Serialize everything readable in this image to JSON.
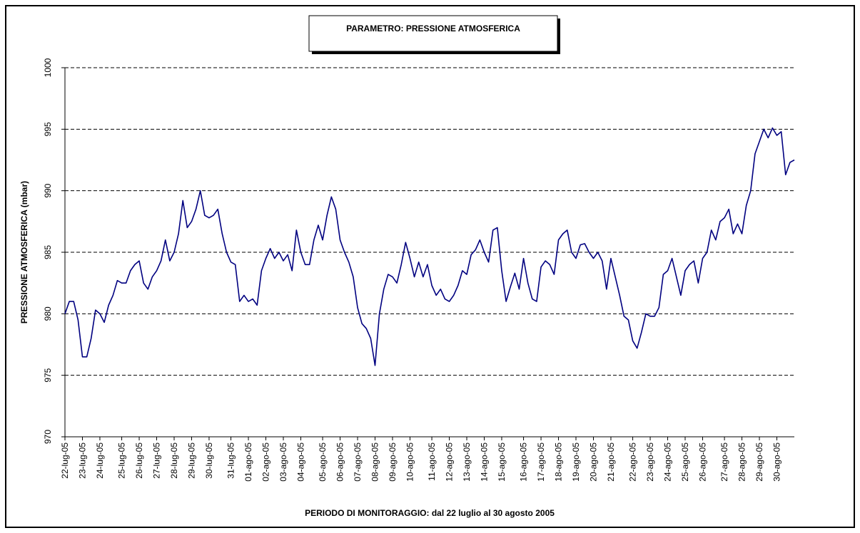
{
  "chart_data": {
    "type": "line",
    "title": "PARAMETRO: PRESSIONE ATMOSFERICA",
    "y_label": "PRESSIONE ATMOSFERICA (mbar)",
    "x_label": "PERIODO DI MONITORAGGIO: dal 22 luglio al 30 agosto 2005",
    "ylim": [
      970,
      1000
    ],
    "yticks": [
      970,
      975,
      980,
      985,
      990,
      995,
      1000
    ],
    "grid": true,
    "color": "#000080",
    "categories": [
      "22-lug-05",
      null,
      null,
      null,
      "23-lug-05",
      null,
      null,
      null,
      "24-lug-05",
      null,
      null,
      null,
      null,
      "25-lug-05",
      null,
      null,
      null,
      "26-lug-05",
      null,
      null,
      null,
      "27-lug-05",
      null,
      null,
      null,
      "28-lug-05",
      null,
      null,
      null,
      "29-lug-05",
      null,
      null,
      null,
      "30-lug-05",
      null,
      null,
      null,
      null,
      "31-lug-05",
      null,
      null,
      null,
      "01-ago-05",
      null,
      null,
      null,
      "02-ago-05",
      null,
      null,
      null,
      "03-ago-05",
      null,
      null,
      null,
      "04-ago-05",
      null,
      null,
      null,
      null,
      "05-ago-05",
      null,
      null,
      null,
      "06-ago-05",
      null,
      null,
      null,
      "07-ago-05",
      null,
      null,
      null,
      "08-ago-05",
      null,
      null,
      null,
      "09-ago-05",
      null,
      null,
      null,
      "10-ago-05",
      null,
      null,
      null,
      null,
      "11-ago-05",
      null,
      null,
      null,
      "12-ago-05",
      null,
      null,
      null,
      "13-ago-05",
      null,
      null,
      null,
      "14-ago-05",
      null,
      null,
      null,
      "15-ago-05",
      null,
      null,
      null,
      null,
      "16-ago-05",
      null,
      null,
      null,
      "17-ago-05",
      null,
      null,
      null,
      "18-ago-05",
      null,
      null,
      null,
      "19-ago-05",
      null,
      null,
      null,
      "20-ago-05",
      null,
      null,
      null,
      "21-ago-05",
      null,
      null,
      null,
      null,
      "22-ago-05",
      null,
      null,
      null,
      "23-ago-05",
      null,
      null,
      null,
      "24-ago-05",
      null,
      null,
      null,
      "25-ago-05",
      null,
      null,
      null,
      "26-ago-05",
      null,
      null,
      null,
      null,
      "27-ago-05",
      null,
      null,
      null,
      "28-ago-05",
      null,
      null,
      null,
      "29-ago-05",
      null,
      null,
      null,
      "30-ago-05",
      null,
      null,
      null,
      null
    ],
    "values": [
      980,
      981,
      981,
      979.5,
      976.5,
      976.5,
      978,
      980.3,
      980,
      979.3,
      980.7,
      981.5,
      982.7,
      982.5,
      982.5,
      983.5,
      984,
      984.3,
      982.5,
      982,
      983,
      983.5,
      984.3,
      986,
      984.3,
      985,
      986.5,
      989.2,
      987,
      987.5,
      988.5,
      990,
      988,
      987.8,
      988,
      988.5,
      986.5,
      985,
      984.2,
      984,
      981,
      981.5,
      981,
      981.2,
      980.7,
      983.5,
      984.5,
      985.3,
      984.5,
      985,
      984.3,
      984.8,
      983.5,
      986.8,
      985,
      984,
      984,
      986,
      987.2,
      986,
      988,
      989.5,
      988.5,
      986,
      985,
      984.2,
      983,
      980.5,
      979.2,
      978.8,
      978,
      975.8,
      980,
      982,
      983.2,
      983,
      982.5,
      984,
      985.8,
      984.5,
      983,
      984.2,
      983,
      984,
      982.3,
      981.5,
      982,
      981.2,
      981,
      981.5,
      982.3,
      983.5,
      983.2,
      984.8,
      985.2,
      986,
      985,
      984.2,
      986.8,
      987,
      983.5,
      981,
      982.2,
      983.3,
      982,
      984.5,
      982.5,
      981.2,
      981,
      983.8,
      984.3,
      984,
      983.2,
      986,
      986.5,
      986.8,
      985,
      984.5,
      985.6,
      985.7,
      985,
      984.5,
      985,
      984.3,
      982,
      984.5,
      983,
      981.5,
      979.8,
      979.5,
      977.8,
      977.2,
      978.5,
      980,
      979.8,
      979.8,
      980.5,
      983.2,
      983.5,
      984.5,
      983,
      981.5,
      983.5,
      984,
      984.3,
      982.5,
      984.5,
      985,
      986.8,
      986,
      987.5,
      987.8,
      988.5,
      986.5,
      987.3,
      986.5,
      988.8,
      990,
      993,
      994,
      995,
      994.3,
      995.1,
      994.5,
      994.8,
      991.3,
      992.3,
      992.5
    ]
  }
}
